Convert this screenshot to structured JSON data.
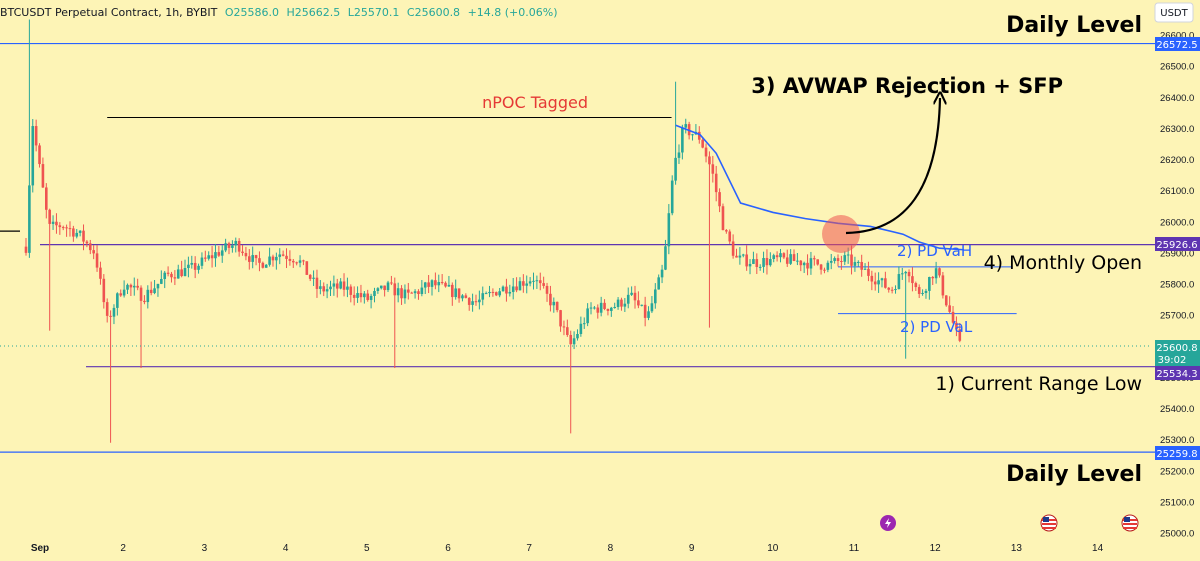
{
  "header": {
    "symbol": "BTCUSDT Perpetual Contract, 1h, BYBIT",
    "open": "O25586.0",
    "high": "H25662.5",
    "low": "L25570.1",
    "close": "C25600.8",
    "change": "+14.8 (+0.06%)",
    "currency_button": "USDT"
  },
  "colors": {
    "background": "#fdf4b6",
    "up": "#26a69a",
    "down": "#ef5350",
    "blue_line": "#2962ff",
    "purple_line": "#5e35b1",
    "avwap": "#2962ff",
    "annotation_red": "#e53935",
    "annotation_blue": "#2962ff",
    "circle": "#ef5350"
  },
  "annotations": {
    "daily_level_top": "Daily Level",
    "daily_level_bottom": "Daily Level",
    "npoc": "nPOC Tagged",
    "avwap": "3) AVWAP Rejection + SFP",
    "pd_vah": "2) PD VaH",
    "monthly_open": "4) Monthly Open",
    "pd_val": "2) PD VaL",
    "range_low": "1) Current Range Low"
  },
  "price_tags": {
    "daily_top": "26572.5",
    "pd_vah": "25926.6",
    "current": "25600.8",
    "countdown": "39:02",
    "range_low": "25534.3",
    "daily_bottom": "25259.8"
  },
  "icons": [
    "lightning-event-icon",
    "us-flag-event-icon",
    "us-flag-event-icon"
  ],
  "chart_data": {
    "type": "candlestick",
    "y_ticks": [
      "26600.0",
      "26500.0",
      "26400.0",
      "26300.0",
      "26200.0",
      "26100.0",
      "26000.0",
      "25900.0",
      "25800.0",
      "25700.0",
      "25600.0",
      "25500.0",
      "25400.0",
      "25300.0",
      "25200.0",
      "25100.0",
      "25000.0"
    ],
    "x_ticks": [
      "Sep",
      "2",
      "3",
      "4",
      "5",
      "6",
      "7",
      "8",
      "9",
      "10",
      "11",
      "12",
      "13",
      "14"
    ],
    "levels": [
      {
        "price": 26572.5,
        "color": "#2962ff",
        "label": "Daily Level"
      },
      {
        "price": 25926.6,
        "color": "#5e35b1"
      },
      {
        "price": 25534.3,
        "color": "#5e35b1",
        "label": "1) Current Range Low"
      },
      {
        "price": 25259.8,
        "color": "#2962ff",
        "label": "Daily Level"
      }
    ],
    "segments": [
      {
        "label": "nPOC Tagged",
        "price": 26335,
        "from_day": 1.0,
        "to_day": 7.95
      },
      {
        "label": "4) Monthly Open",
        "price": 25855,
        "from_day": 10.0,
        "to_day": 12.15
      },
      {
        "label": "2) PD VaL",
        "price": 25705,
        "from_day": 10.0,
        "to_day": 12.2
      }
    ],
    "ohlc_anchors": [
      [
        0.0,
        25920
      ],
      [
        0.08,
        26320
      ],
      [
        0.18,
        26150
      ],
      [
        0.28,
        25980
      ],
      [
        0.45,
        25990
      ],
      [
        0.65,
        25960
      ],
      [
        0.85,
        25900
      ],
      [
        1.0,
        25680
      ],
      [
        1.2,
        25800
      ],
      [
        1.45,
        25760
      ],
      [
        1.75,
        25830
      ],
      [
        2.05,
        25850
      ],
      [
        2.35,
        25900
      ],
      [
        2.6,
        25930
      ],
      [
        2.85,
        25860
      ],
      [
        3.1,
        25900
      ],
      [
        3.35,
        25880
      ],
      [
        3.6,
        25780
      ],
      [
        3.9,
        25790
      ],
      [
        4.2,
        25750
      ],
      [
        4.45,
        25790
      ],
      [
        4.7,
        25760
      ],
      [
        5.0,
        25800
      ],
      [
        5.3,
        25770
      ],
      [
        5.55,
        25740
      ],
      [
        5.8,
        25780
      ],
      [
        6.05,
        25800
      ],
      [
        6.25,
        25820
      ],
      [
        6.5,
        25730
      ],
      [
        6.7,
        25600
      ],
      [
        6.95,
        25720
      ],
      [
        7.25,
        25730
      ],
      [
        7.45,
        25760
      ],
      [
        7.65,
        25690
      ],
      [
        7.85,
        25850
      ],
      [
        7.98,
        26180
      ],
      [
        8.1,
        26300
      ],
      [
        8.3,
        26270
      ],
      [
        8.45,
        26160
      ],
      [
        8.6,
        25970
      ],
      [
        8.75,
        25880
      ],
      [
        9.0,
        25870
      ],
      [
        9.3,
        25880
      ],
      [
        9.6,
        25870
      ],
      [
        9.85,
        25860
      ],
      [
        10.1,
        25880
      ],
      [
        10.4,
        25830
      ],
      [
        10.65,
        25780
      ],
      [
        10.85,
        25860
      ],
      [
        11.0,
        25760
      ],
      [
        11.2,
        25850
      ],
      [
        11.4,
        25690
      ],
      [
        11.5,
        25600
      ]
    ],
    "avwap": {
      "name": "AVWAP",
      "points": [
        [
          8.0,
          26310
        ],
        [
          8.3,
          26280
        ],
        [
          8.5,
          26220
        ],
        [
          8.8,
          26060
        ],
        [
          9.2,
          26030
        ],
        [
          9.6,
          26010
        ],
        [
          10.0,
          25995
        ],
        [
          10.4,
          25985
        ],
        [
          10.8,
          25960
        ],
        [
          11.0,
          25935
        ],
        [
          11.25,
          25915
        ],
        [
          11.55,
          25910
        ]
      ]
    }
  }
}
